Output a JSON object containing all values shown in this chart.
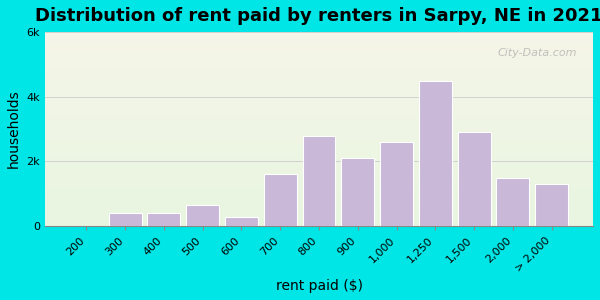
{
  "title": "Distribution of rent paid by renters in Sarpy, NE in 2021",
  "xlabel": "rent paid ($)",
  "ylabel": "households",
  "bar_labels": [
    "200",
    "300",
    "400",
    "500",
    "600",
    "700",
    "800",
    "900",
    "1,000",
    "1,250",
    "1,500",
    "2,000",
    "> 2,000"
  ],
  "bar_values": [
    0,
    400,
    390,
    650,
    290,
    1600,
    2800,
    2100,
    2600,
    4500,
    2900,
    1500,
    1300
  ],
  "bar_color": "#c9b8d8",
  "bar_edge_color": "#ffffff",
  "ylim": [
    0,
    6000
  ],
  "yticks": [
    0,
    2000,
    4000,
    6000
  ],
  "ytick_labels": [
    "0",
    "2k",
    "4k",
    "6k"
  ],
  "bg_color": "#00e5e5",
  "plot_bg_top": "#e8f5e0",
  "plot_bg_bottom": "#f5f5e8",
  "title_fontsize": 13,
  "axis_label_fontsize": 10,
  "tick_fontsize": 8,
  "watermark_text": "City-Data.com"
}
